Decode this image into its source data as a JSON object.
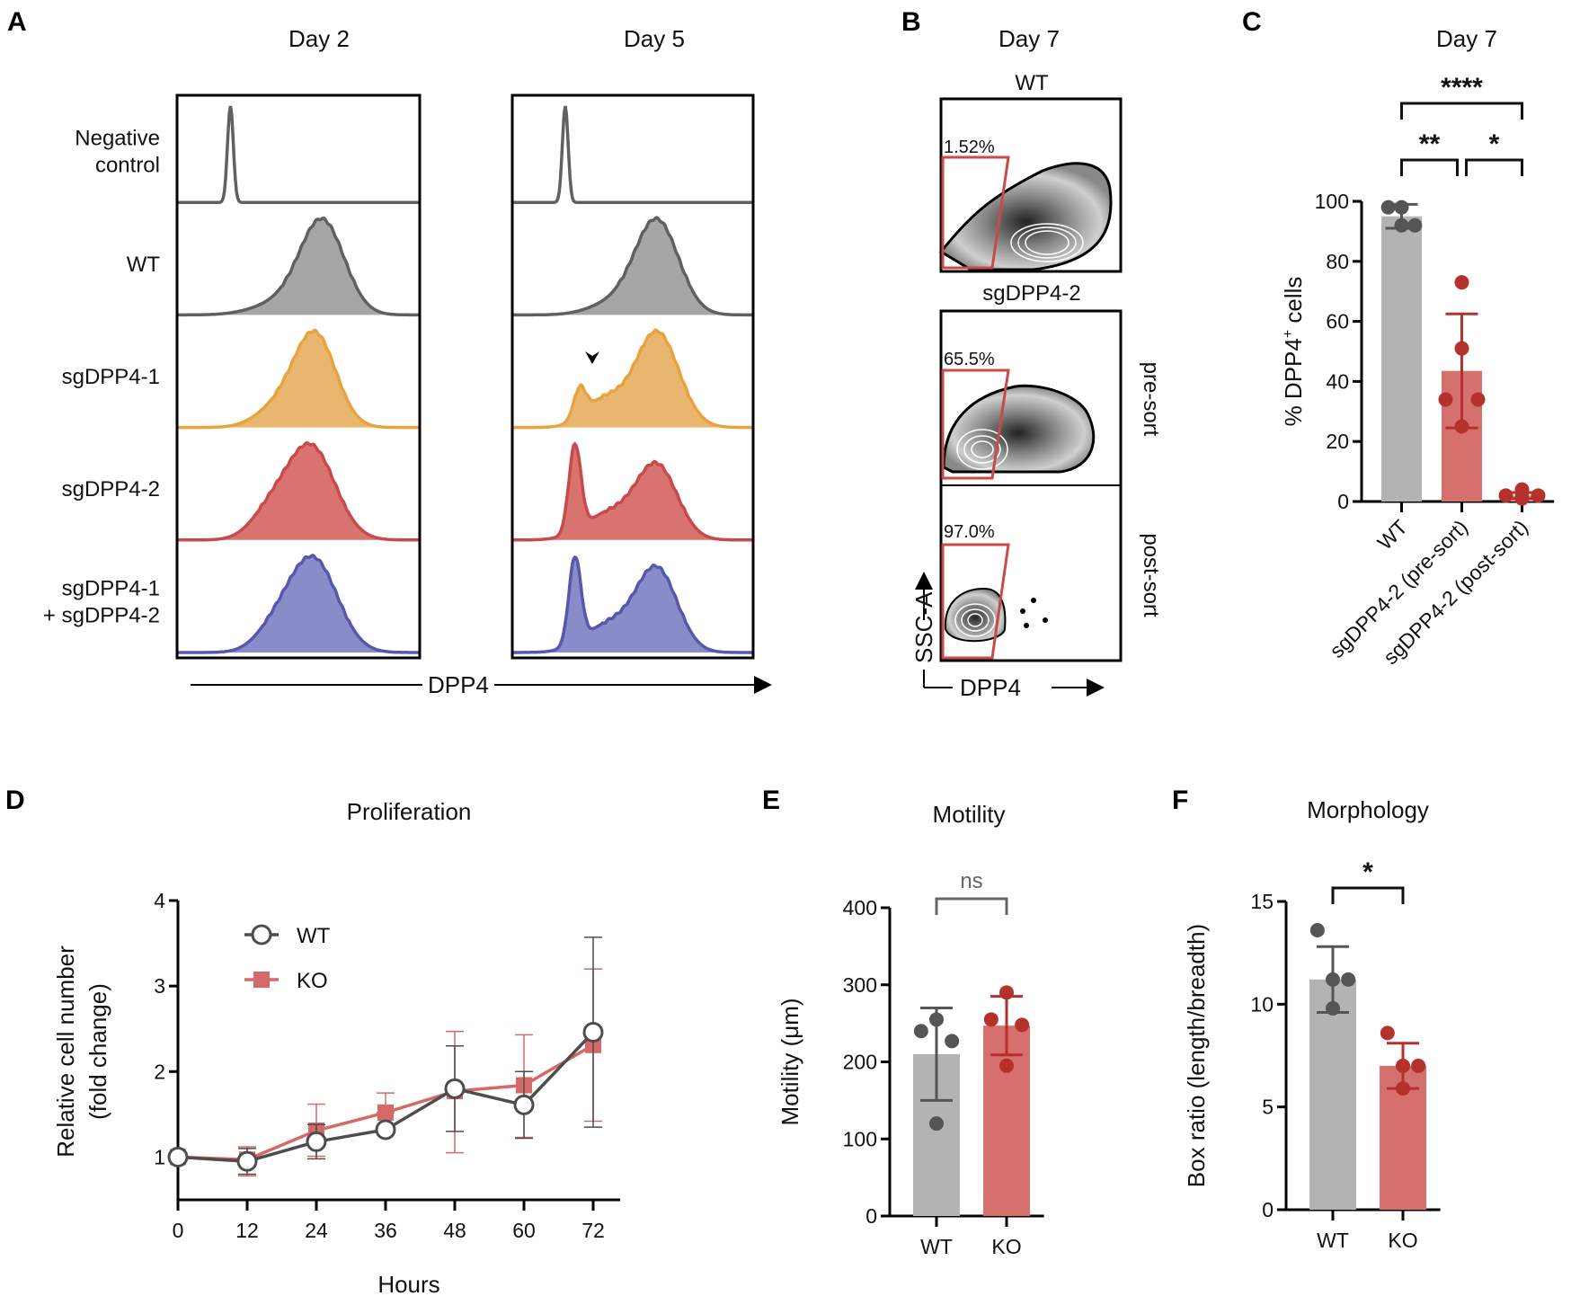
{
  "panels": {
    "A": {
      "letter": "A",
      "columns": [
        "Day 2",
        "Day 5"
      ],
      "rows": [
        {
          "label": [
            "Negative",
            "control"
          ],
          "color": "#606060",
          "fill": "none"
        },
        {
          "label": [
            "WT"
          ],
          "color": "#606060",
          "fill": "#a6a6a6"
        },
        {
          "label": [
            "sgDPP4-1"
          ],
          "color": "#e8a23e",
          "fill": "#e9b670"
        },
        {
          "label": [
            "sgDPP4-2"
          ],
          "color": "#c94a4a",
          "fill": "#d87370"
        },
        {
          "label": [
            "sgDPP4-1",
            "+ sgDPP4-2"
          ],
          "color": "#5757ad",
          "fill": "#8a8cca"
        }
      ],
      "xlabel": "DPP4",
      "arrowhead_note": "▼"
    },
    "B": {
      "letter": "B",
      "title": "Day 7",
      "plots": [
        {
          "header": "WT",
          "gate_pct": "1.52%",
          "side_label": ""
        },
        {
          "header": "sgDPP4-2",
          "gate_pct": "65.5%",
          "side_label": "pre-sort"
        },
        {
          "header": "",
          "gate_pct": "97.0%",
          "side_label": "post-sort"
        }
      ],
      "xlabel": "DPP4",
      "ylabel": "SSC-A"
    },
    "C": {
      "letter": "C",
      "significance": [
        {
          "from": 0,
          "to": 2,
          "label": "****"
        },
        {
          "from": 0,
          "to": 1,
          "label": "**"
        },
        {
          "from": 1,
          "to": 2,
          "label": "*"
        }
      ]
    },
    "D": {
      "letter": "D"
    },
    "E": {
      "letter": "E",
      "significance": [
        {
          "from": 0,
          "to": 1,
          "label": "ns"
        }
      ]
    },
    "F": {
      "letter": "F",
      "significance": [
        {
          "from": 0,
          "to": 1,
          "label": "*"
        }
      ]
    }
  },
  "chart_data": [
    {
      "id": "C",
      "type": "bar",
      "title": "Day 7",
      "ylabel": "% DPP4+ cells",
      "ylabel_main": "% DPP4",
      "ylabel_sup": "+",
      "ylabel_tail": " cells",
      "ylim": [
        0,
        100
      ],
      "yticks": [
        0,
        20,
        40,
        60,
        80,
        100
      ],
      "categories": [
        "WT",
        "sgDPP4-2 (pre-sort)",
        "sgDPP4-2 (post-sort)"
      ],
      "values": [
        95,
        43.5,
        2
      ],
      "errors": [
        4,
        19,
        1
      ],
      "points": [
        [
          98,
          98,
          92,
          92
        ],
        [
          73,
          51,
          34,
          34,
          25
        ],
        [
          3,
          4,
          2,
          2,
          1
        ]
      ],
      "colors": [
        "#b3b3b3",
        "#d6706d",
        "#e08a87"
      ],
      "point_colors": [
        "#555555",
        "#b5312b",
        "#b5312b"
      ]
    },
    {
      "id": "D",
      "type": "line",
      "title": "Proliferation",
      "xlabel": "Hours",
      "ylabel": [
        "Relative cell number",
        "(fold change)"
      ],
      "x": [
        0,
        12,
        24,
        36,
        48,
        60,
        72
      ],
      "xticks": [
        0,
        12,
        24,
        36,
        48,
        60,
        72
      ],
      "yticks": [
        1,
        2,
        3,
        4
      ],
      "ylim": [
        0.5,
        4
      ],
      "xlim": [
        0,
        72
      ],
      "legend": "top-left",
      "series": [
        {
          "name": "WT",
          "marker": "open-circle",
          "color": "#4d4d4d",
          "values": [
            1.0,
            0.95,
            1.18,
            1.32,
            1.8,
            1.61,
            2.46
          ],
          "err_low": [
            1.0,
            0.8,
            0.98,
            1.32,
            1.3,
            1.22,
            1.35
          ],
          "err_high": [
            1.0,
            1.1,
            1.38,
            1.32,
            2.3,
            2.0,
            3.57
          ]
        },
        {
          "name": "KO",
          "marker": "filled-square",
          "color": "#d46a67",
          "values": [
            1.0,
            0.97,
            1.31,
            1.52,
            1.77,
            1.84,
            2.31
          ],
          "err_low": [
            1.0,
            0.78,
            1.01,
            1.52,
            1.05,
            1.23,
            1.42
          ],
          "err_high": [
            1.0,
            1.12,
            1.62,
            1.75,
            2.47,
            2.43,
            3.2
          ]
        }
      ]
    },
    {
      "id": "E",
      "type": "bar",
      "title": "Motility",
      "ylabel": "Motility (μm)",
      "ylim": [
        0,
        400
      ],
      "yticks": [
        0,
        100,
        200,
        300,
        400
      ],
      "categories": [
        "WT",
        "KO"
      ],
      "values": [
        210,
        247
      ],
      "errors": [
        60,
        38
      ],
      "points": [
        [
          240,
          255,
          227,
          120
        ],
        [
          255,
          290,
          248,
          195
        ]
      ],
      "colors": [
        "#b3b3b3",
        "#d6706d"
      ],
      "point_colors": [
        "#555555",
        "#b5312b"
      ]
    },
    {
      "id": "F",
      "type": "bar",
      "title": "Morphology",
      "ylabel": "Box ratio (length/breadth)",
      "ylim": [
        0,
        15
      ],
      "yticks": [
        0,
        5,
        10,
        15
      ],
      "categories": [
        "WT",
        "KO"
      ],
      "values": [
        11.2,
        7.0
      ],
      "errors": [
        1.6,
        1.1
      ],
      "points": [
        [
          13.6,
          11.2,
          11.2,
          9.8
        ],
        [
          8.6,
          7.0,
          7.0,
          5.9
        ]
      ],
      "colors": [
        "#b3b3b3",
        "#d6706d"
      ],
      "point_colors": [
        "#555555",
        "#b5312b"
      ]
    }
  ]
}
